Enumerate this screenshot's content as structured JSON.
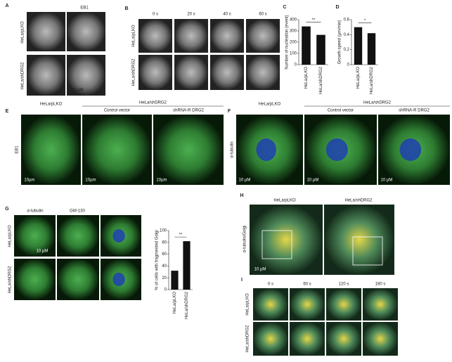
{
  "panels": {
    "A": {
      "label": "A",
      "title": "EB1",
      "rows": [
        "HeLa/pLKO",
        "HeLa/shDRG2"
      ],
      "scale": "10 µM"
    },
    "B": {
      "label": "B",
      "times": [
        "0 s",
        "20 s",
        "40 s",
        "60 s"
      ],
      "rows": [
        "HeLa/pLKO",
        "HeLa/shDRG2"
      ]
    },
    "C": {
      "label": "C",
      "ylabel": "Number of nucleation (event)",
      "significance": "**",
      "categories": [
        "HeLa/pLKO",
        "HeLa/shDRG2"
      ],
      "values": [
        340,
        265
      ],
      "ylim": [
        0,
        400
      ],
      "yticks": [
        0,
        100,
        200,
        300,
        400
      ]
    },
    "D": {
      "label": "D",
      "ylabel": "Growth speed (µm/min)",
      "significance": "*",
      "categories": [
        "HeLa/pLKO",
        "HeLa/shDRG2"
      ],
      "values": [
        0.5,
        0.42
      ],
      "ylim": [
        0,
        0.6
      ],
      "yticks": [
        0,
        0.2,
        0.4,
        0.6
      ]
    },
    "E": {
      "label": "E",
      "groups": [
        "HeLa/pLKO",
        "HeLa/shDRG2"
      ],
      "subgroups": [
        "Control vector",
        "shRNA-R DRG2"
      ],
      "row": "EB1",
      "scales": [
        "10µm",
        "10µm",
        "10µm"
      ]
    },
    "F": {
      "label": "F",
      "groups": [
        "HeLa/pLKO",
        "HeLa/shDRG2"
      ],
      "subgroups": [
        "Control vector",
        "shRNA-R DRG2"
      ],
      "row": "α-tubulin",
      "scales": [
        "10 µM",
        "10 µM",
        "10 µM"
      ]
    },
    "G": {
      "label": "G",
      "columns": [
        "α-tubulin",
        "GM-130"
      ],
      "rows": [
        "HeLa/pLKO",
        "HeLa/shDRG2"
      ],
      "scale": "10 µM",
      "ylabel": "% of cells with fragmented Golgi",
      "significance": "**",
      "categories": [
        "HeLa/pLKO",
        "HeLa/shDRG2"
      ],
      "values": [
        32,
        82
      ],
      "ylim": [
        0,
        100
      ],
      "yticks": [
        0,
        20,
        40,
        60,
        80,
        100
      ]
    },
    "H": {
      "label": "H",
      "columns": [
        "HeLa/pLKO",
        "HeLa/shDRG2"
      ],
      "row": "α-tubulin/Golgi",
      "scale": "10 µM"
    },
    "I": {
      "label": "I",
      "times": [
        "0 s",
        "60 s",
        "120 s",
        "180 s"
      ],
      "rows": [
        "HeLa/pLKO",
        "HeLa/shDRG2"
      ]
    }
  }
}
